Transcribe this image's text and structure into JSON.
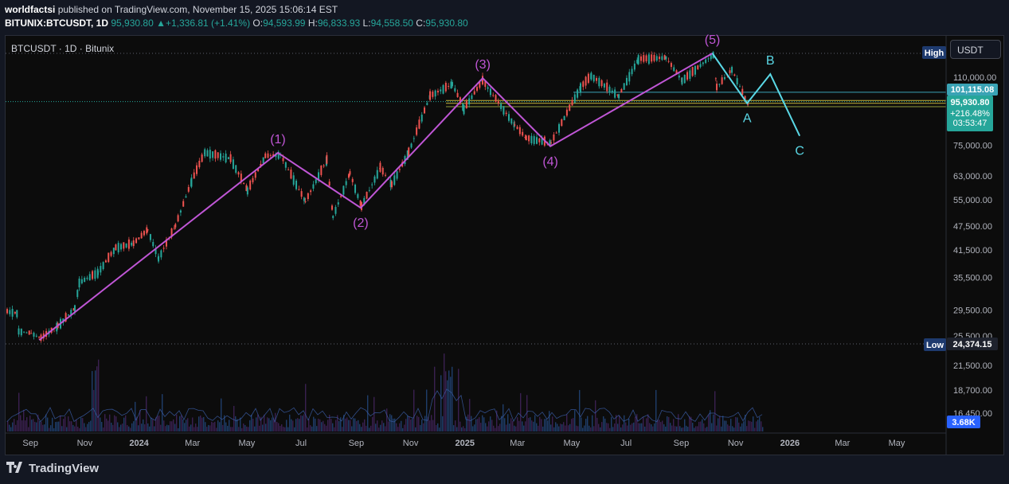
{
  "header": {
    "author": "worldfactsi",
    "published": "published on TradingView.com, November 15, 2025 15:06:14 EST",
    "symbol": "BITUNIX:BTCUSDT, 1D",
    "close_val": "95,930.80",
    "change": "+1,336.81 (+1.41%)",
    "o_label": "O:",
    "o": "94,593.99",
    "h_label": "H:",
    "h": "96,833.93",
    "l_label": "L:",
    "l": "94,558.50",
    "c_label": "C:",
    "c": "95,930.80"
  },
  "legend": "BTCUSDT · 1D · Bitunix",
  "currency_button": "USDT",
  "footer": "TradingView",
  "colors": {
    "up": "#26a69a",
    "down": "#ef5350",
    "wave": "#c056d6",
    "abc": "#5ad8e6",
    "bg": "#0c0c0c"
  },
  "chart_data": {
    "type": "line",
    "title": "BTCUSDT · 1D · Bitunix",
    "x_ticks": [
      "Sep",
      "Nov",
      "2024",
      "Mar",
      "May",
      "Jul",
      "Sep",
      "Nov",
      "2025",
      "Mar",
      "May",
      "Jul",
      "Sep",
      "Nov",
      "2026",
      "Mar",
      "May"
    ],
    "y_ticks": [
      "110,000.00",
      "75,000.00",
      "63,000.00",
      "55,000.00",
      "47,500.00",
      "41,500.00",
      "35,500.00",
      "29,500.00",
      "25,500.00",
      "21,500.00",
      "18,700.00",
      "16,450.00"
    ],
    "yscale": "log",
    "price_labels": [
      {
        "tag": "High",
        "value": ""
      },
      {
        "tag": "",
        "value": "101,115.08"
      },
      {
        "tag": "",
        "value": "95,930.80"
      },
      {
        "tag": "",
        "value": "+216.48%"
      },
      {
        "tag": "",
        "value": "03:53:47"
      },
      {
        "tag": "Low",
        "value": "24,374.15"
      }
    ],
    "volume_label": "3.68K",
    "price_path": [
      [
        "2023-08-05",
        29300
      ],
      [
        "2023-08-16",
        29000
      ],
      [
        "2023-08-18",
        26200
      ],
      [
        "2023-09-01",
        25900
      ],
      [
        "2023-09-12",
        25200
      ],
      [
        "2023-10-01",
        27000
      ],
      [
        "2023-10-20",
        29800
      ],
      [
        "2023-10-25",
        34500
      ],
      [
        "2023-11-15",
        36500
      ],
      [
        "2023-12-05",
        42000
      ],
      [
        "2023-12-25",
        43000
      ],
      [
        "2024-01-10",
        46500
      ],
      [
        "2024-01-22",
        39500
      ],
      [
        "2024-02-10",
        47500
      ],
      [
        "2024-02-28",
        61000
      ],
      [
        "2024-03-14",
        72000
      ],
      [
        "2024-04-12",
        69500
      ],
      [
        "2024-05-01",
        58000
      ],
      [
        "2024-05-21",
        70500
      ],
      [
        "2024-06-07",
        71000
      ],
      [
        "2024-07-05",
        54500
      ],
      [
        "2024-07-29",
        69000
      ],
      [
        "2024-08-05",
        50000
      ],
      [
        "2024-08-24",
        64000
      ],
      [
        "2024-09-06",
        53000
      ],
      [
        "2024-09-27",
        66000
      ],
      [
        "2024-10-10",
        60000
      ],
      [
        "2024-10-29",
        72000
      ],
      [
        "2024-11-22",
        99000
      ],
      [
        "2024-12-17",
        106000
      ],
      [
        "2024-12-30",
        92000
      ],
      [
        "2025-01-20",
        108000
      ],
      [
        "2025-02-25",
        84000
      ],
      [
        "2025-03-10",
        78000
      ],
      [
        "2025-04-07",
        76000
      ],
      [
        "2025-05-10",
        104000
      ],
      [
        "2025-05-22",
        111000
      ],
      [
        "2025-06-22",
        99000
      ],
      [
        "2025-07-14",
        122000
      ],
      [
        "2025-08-14",
        123000
      ],
      [
        "2025-09-01",
        108000
      ],
      [
        "2025-10-06",
        125000
      ],
      [
        "2025-10-10",
        104000
      ],
      [
        "2025-10-27",
        115000
      ],
      [
        "2025-11-14",
        94500
      ],
      [
        "2025-11-15",
        95930
      ]
    ],
    "series": [
      {
        "name": "",
        "type": "elliott_wave",
        "points": [
          [
            "2023-09-11",
            24900
          ],
          [
            "2024-06-05",
            71800
          ],
          [
            "2024-09-06",
            52600
          ],
          [
            "2025-01-21",
            109500
          ],
          [
            "2025-04-07",
            74500
          ],
          [
            "2025-10-06",
            126000
          ]
        ],
        "labels": [
          "",
          "(1)",
          "(2)",
          "(3)",
          "(4)",
          "(5)"
        ]
      },
      {
        "name": "",
        "type": "abc_projection",
        "points": [
          [
            "2025-10-06",
            126000
          ],
          [
            "2025-11-14",
            95000
          ],
          [
            "2025-12-10",
            112000
          ],
          [
            "2026-01-12",
            79000
          ]
        ],
        "labels": [
          "",
          "A",
          "B",
          "C"
        ]
      }
    ],
    "hlines": [
      101115.08,
      96000,
      95400,
      93500,
      126000,
      24374.15
    ],
    "legend": "none",
    "grid": false
  }
}
